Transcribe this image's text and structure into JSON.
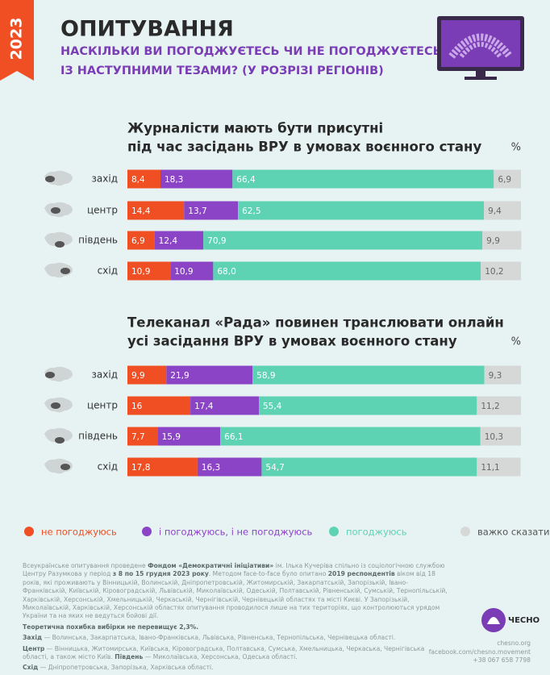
{
  "header": {
    "year": "2023",
    "title": "ОПИТУВАННЯ",
    "subtitle": [
      "НАСКІЛЬКИ ВИ ПОГОДЖУЄТЕСЬ ЧИ НЕ ПОГОДЖУЄТЕСЬ",
      "ІЗ НАСТУПНИМИ ТЕЗАМИ? (У РОЗРІЗІ РЕГІОНІВ)"
    ]
  },
  "chart_data": [
    {
      "type": "stacked-bar",
      "orientation": "horizontal",
      "title": [
        "Журналісти мають бути присутні",
        "під час засідань ВРУ в умовах воєнного стану"
      ],
      "unit": "%",
      "xlim": [
        0,
        100
      ],
      "categories": [
        "захід",
        "центр",
        "південь",
        "схід"
      ],
      "series": [
        {
          "name": "не погоджуюсь",
          "color": "#f04e23",
          "values": [
            8.4,
            14.4,
            6.9,
            10.9
          ],
          "value_labels": [
            "8,4",
            "14,4",
            "6,9",
            "10,9"
          ]
        },
        {
          "name": "і погоджуюсь, і не погоджуюсь",
          "color": "#8b44c6",
          "values": [
            18.3,
            13.7,
            12.4,
            10.9
          ],
          "value_labels": [
            "18,3",
            "13,7",
            "12,4",
            "10,9"
          ]
        },
        {
          "name": "погоджуюсь",
          "color": "#5ed3b4",
          "values": [
            66.4,
            62.5,
            70.9,
            68.0
          ],
          "value_labels": [
            "66,4",
            "62,5",
            "70,9",
            "68,0"
          ]
        },
        {
          "name": "важко сказати",
          "color": "#d6d8d8",
          "values": [
            6.9,
            9.4,
            9.9,
            10.2
          ],
          "value_labels": [
            "6,9",
            "9,4",
            "9,9",
            "10,2"
          ]
        }
      ]
    },
    {
      "type": "stacked-bar",
      "orientation": "horizontal",
      "title": [
        "Телеканал «Рада» повинен транслювати онлайн",
        "усі засідання ВРУ в умовах воєнного стану"
      ],
      "unit": "%",
      "xlim": [
        0,
        100
      ],
      "categories": [
        "захід",
        "центр",
        "південь",
        "схід"
      ],
      "series": [
        {
          "name": "не погоджуюсь",
          "color": "#f04e23",
          "values": [
            9.9,
            16,
            7.7,
            17.8
          ],
          "value_labels": [
            "9,9",
            "16",
            "7,7",
            "17,8"
          ]
        },
        {
          "name": "і погоджуюсь, і не погоджуюсь",
          "color": "#8b44c6",
          "values": [
            21.9,
            17.4,
            15.9,
            16.3
          ],
          "value_labels": [
            "21,9",
            "17,4",
            "15,9",
            "16,3"
          ]
        },
        {
          "name": "погоджуюсь",
          "color": "#5ed3b4",
          "values": [
            58.9,
            55.4,
            66.1,
            54.7
          ],
          "value_labels": [
            "58,9",
            "55,4",
            "66,1",
            "54,7"
          ]
        },
        {
          "name": "важко сказати",
          "color": "#d6d8d8",
          "values": [
            9.3,
            11.2,
            10.3,
            11.1
          ],
          "value_labels": [
            "9,3",
            "11,2",
            "10,3",
            "11,1"
          ]
        }
      ]
    }
  ],
  "footer": {
    "method": [
      "Всеукраїнське опитування проведене ",
      "Фондом «Демократичні ініціативи»",
      " ім. Ілька Кучеріва спільно із соціологічною службою Центру Разумкова у період ",
      "з 8 по 15 грудня 2023 року",
      ". Методом face-to-face було опитано ",
      "2019 респондентів",
      " віком від 18 років, які проживають у Вінницькій, Волинській, Дніпропетровській, Житомирській, Закарпатській, Запорізькій, Івано-Франківській, Київській, Кіровоградській, Львівській, Миколаївській, Одеській, Полтавській, Рівненській, Сумській, Тернопільській, Харківській, Херсонській, Хмельницькій, Черкаській, Чернігівській, Чернівецькій областях та місті Києві. У Запорізькій, Миколаївській, Харківській, Херсонській областях опитування проводилося лише на тих територіях, що контролюються урядом України та на яких не ведуться бойові дії."
    ],
    "error": "Теоретична похибка вибірки не перевищує 2,3%.",
    "regions": [
      [
        "Захід",
        " — Волинська, Закарпатська, Івано-Франківська, Львівська, Рівненська, Тернопільська, Чернівецька області."
      ],
      [
        "Центр",
        " — Вінницька, Житомирська, Київська, Кіровоградська, Полтавська, Сумська, Хмельницька, Черкаська, Чернігівська області, а також місто Київ. ",
        "Південь",
        " — Миколаївська, Херсонська, Одеська області."
      ],
      [
        "Схід",
        " — Дніпропетровська, Запорізька, Харківська області."
      ]
    ],
    "brand": "ЧЕСНО",
    "contacts": [
      "chesno.org",
      "facebook.com/chesno.movement",
      "+38 067 658 7798"
    ]
  }
}
